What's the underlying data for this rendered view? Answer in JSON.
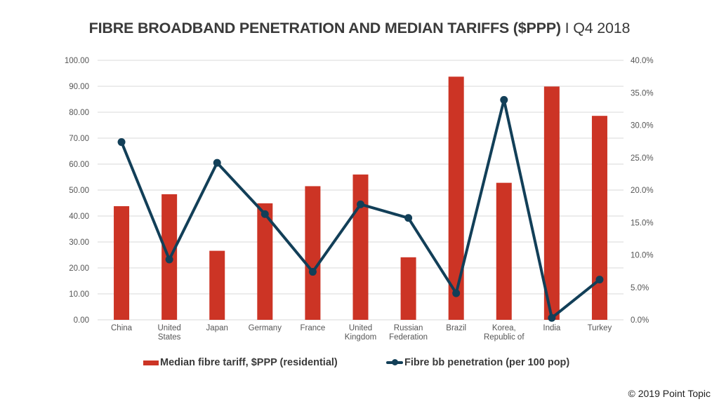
{
  "title": {
    "main": "FIBRE BROADBAND PENETRATION AND MEDIAN TARIFFS ($PPP)",
    "separator": " I ",
    "period": "Q4 2018"
  },
  "copyright": "© 2019 Point Topic",
  "colors": {
    "bar": "#cc3425",
    "line": "#123f58",
    "grid": "#d9d9d9",
    "text": "#555555"
  },
  "chart_data": {
    "type": "bar+line",
    "title": "FIBRE BROADBAND PENETRATION AND MEDIAN TARIFFS ($PPP) I Q4 2018",
    "categories": [
      [
        "China"
      ],
      [
        "United",
        "States"
      ],
      [
        "Japan"
      ],
      [
        "Germany"
      ],
      [
        "France"
      ],
      [
        "United",
        "Kingdom"
      ],
      [
        "Russian",
        "Federation"
      ],
      [
        "Brazil"
      ],
      [
        "Korea,",
        "Republic of"
      ],
      [
        "India"
      ],
      [
        "Turkey"
      ]
    ],
    "series": [
      {
        "name": "Median fibre tariff, $PPP (residential)",
        "type": "bar",
        "axis": "left",
        "values": [
          43.8,
          48.4,
          26.6,
          44.9,
          51.5,
          56.0,
          24.1,
          93.7,
          52.8,
          89.9,
          78.6
        ]
      },
      {
        "name": "Fibre bb penetration (per 100 pop)",
        "type": "line",
        "axis": "right",
        "values": [
          27.4,
          9.3,
          24.2,
          16.3,
          7.4,
          17.8,
          15.7,
          4.1,
          33.9,
          0.3,
          6.2
        ]
      }
    ],
    "left_axis": {
      "ylim": [
        0,
        100
      ],
      "ticks": [
        "0.00",
        "10.00",
        "20.00",
        "30.00",
        "40.00",
        "50.00",
        "60.00",
        "70.00",
        "80.00",
        "90.00",
        "100.00"
      ]
    },
    "right_axis": {
      "ylim": [
        0,
        40
      ],
      "unit": "%",
      "ticks": [
        "0.0%",
        "5.0%",
        "10.0%",
        "15.0%",
        "20.0%",
        "25.0%",
        "30.0%",
        "35.0%",
        "40.0%"
      ]
    },
    "grid": true,
    "legend": "bottom"
  }
}
